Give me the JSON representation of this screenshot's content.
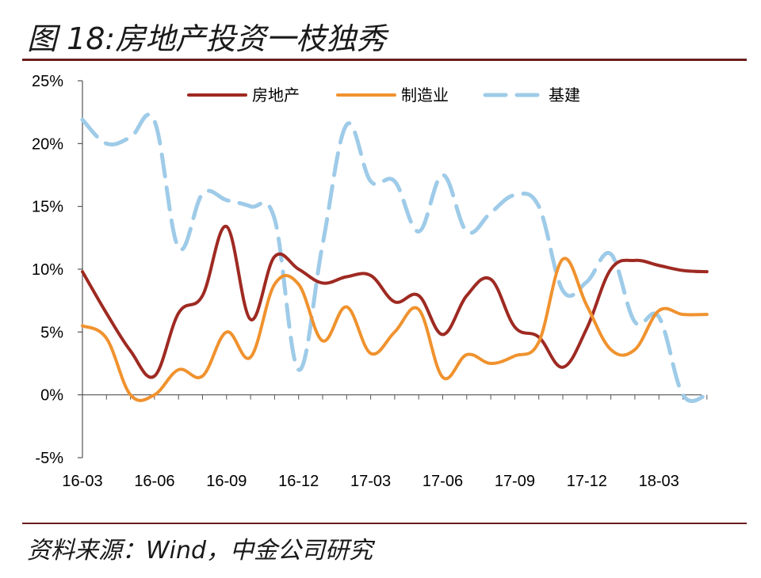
{
  "header": {
    "title": "图 18:房地产投资一枝独秀"
  },
  "footer": {
    "source": "资料来源：Wind，中金公司研究"
  },
  "chart_data": {
    "type": "line",
    "title": "图 18:房地产投资一枝独秀",
    "xlabel": "",
    "ylabel": "",
    "x": [
      "16-03",
      "16-04",
      "16-05",
      "16-06",
      "16-07",
      "16-08",
      "16-09",
      "16-10",
      "16-11",
      "16-12",
      "17-01",
      "17-02",
      "17-03",
      "17-04",
      "17-05",
      "17-06",
      "17-07",
      "17-08",
      "17-09",
      "17-10",
      "17-11",
      "17-12",
      "18-01",
      "18-02",
      "18-03",
      "18-04",
      "18-05"
    ],
    "x_tick_labels": [
      "16-03",
      "16-06",
      "16-09",
      "16-12",
      "17-03",
      "17-06",
      "17-09",
      "17-12",
      "18-03"
    ],
    "y_tick_labels": [
      "25%",
      "20%",
      "15%",
      "10%",
      "5%",
      "0%",
      "-5%"
    ],
    "ylim": [
      -5,
      25
    ],
    "legend_position": "top",
    "series": [
      {
        "name": "房地产",
        "color": "#9e2a22",
        "style": "solid",
        "values": [
          9.8,
          6.5,
          3.5,
          1.5,
          6.5,
          7.9,
          13.4,
          6.0,
          11.0,
          10.0,
          8.9,
          9.4,
          9.5,
          7.4,
          7.9,
          4.8,
          7.9,
          9.2,
          5.4,
          4.6,
          2.2,
          5.3,
          10.0,
          10.7,
          10.3,
          9.9,
          9.8
        ]
      },
      {
        "name": "制造业",
        "color": "#f0922e",
        "style": "solid",
        "values": [
          5.5,
          4.5,
          0.0,
          0.0,
          2.0,
          1.5,
          5.0,
          3.0,
          8.8,
          8.8,
          4.3,
          7.0,
          3.3,
          5.0,
          6.8,
          1.4,
          3.2,
          2.5,
          3.1,
          4.2,
          10.8,
          7.1,
          3.6,
          3.6,
          6.7,
          6.4,
          6.4
        ]
      },
      {
        "name": "基建",
        "color": "#9ecbe8",
        "style": "dashed",
        "values": [
          21.9,
          20.0,
          20.5,
          21.8,
          11.7,
          16.0,
          15.5,
          15.0,
          14.0,
          2.0,
          12.0,
          21.5,
          17.0,
          17.0,
          13.0,
          17.5,
          13.0,
          14.5,
          15.9,
          15.0,
          8.3,
          9.0,
          11.2,
          5.8,
          6.2,
          0.0,
          0.0
        ]
      }
    ]
  }
}
